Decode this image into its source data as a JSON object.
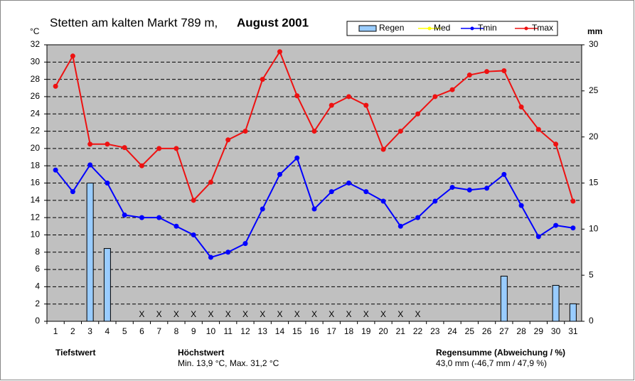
{
  "chart_data": {
    "type": "line",
    "title": "Stetten am kalten  Markt  789 m,",
    "period": "August 2001",
    "ylabel": "°C",
    "y2label": "mm",
    "categories": [
      "1",
      "2",
      "3",
      "4",
      "5",
      "6",
      "7",
      "8",
      "9",
      "10",
      "11",
      "12",
      "13",
      "14",
      "15",
      "16",
      "17",
      "18",
      "19",
      "20",
      "21",
      "22",
      "23",
      "24",
      "25",
      "26",
      "27",
      "28",
      "29",
      "30",
      "31"
    ],
    "series": [
      {
        "name": "Regen",
        "color": "#99ccff",
        "kind": "bar",
        "axis": "y2",
        "values": [
          0,
          0,
          15.0,
          7.9,
          0,
          0,
          0,
          0,
          0,
          0,
          0,
          0,
          0,
          0,
          0,
          0,
          0,
          0,
          0,
          0,
          0,
          0,
          0,
          0,
          0,
          0,
          4.9,
          0,
          0,
          3.9,
          1.9
        ]
      },
      {
        "name": "Med",
        "color": "#ffff00",
        "kind": "line",
        "values": [
          null,
          null,
          null,
          null,
          null,
          null,
          null,
          null,
          null,
          null,
          null,
          null,
          null,
          null,
          null,
          null,
          null,
          null,
          null,
          null,
          null,
          null,
          null,
          null,
          null,
          null,
          null,
          null,
          null,
          null,
          null
        ]
      },
      {
        "name": "Tmin",
        "color": "#0000ff",
        "kind": "line",
        "values": [
          17.5,
          15.0,
          18.1,
          16.0,
          12.3,
          12.0,
          12.0,
          11.0,
          10.0,
          7.4,
          8.0,
          9.0,
          13.0,
          17.0,
          18.9,
          13.0,
          15.0,
          16.0,
          15.0,
          13.9,
          11.0,
          12.0,
          13.9,
          15.5,
          15.2,
          15.4,
          17.0,
          13.4,
          9.8,
          11.1,
          10.8
        ]
      },
      {
        "name": "Tmax",
        "color": "#ee1111",
        "kind": "line",
        "values": [
          27.2,
          30.7,
          20.5,
          20.5,
          20.1,
          18.0,
          20.0,
          20.0,
          14.0,
          16.1,
          21.0,
          22.0,
          28.0,
          31.2,
          26.1,
          22.0,
          25.0,
          26.0,
          25.0,
          19.9,
          22.0,
          24.0,
          26.0,
          26.8,
          28.5,
          28.9,
          29.0,
          24.8,
          22.2,
          20.5,
          13.9
        ]
      }
    ],
    "flags": [
      null,
      null,
      null,
      null,
      null,
      "X",
      "X",
      "X",
      "X",
      "X",
      "X",
      "X",
      "X",
      "X",
      "X",
      "X",
      "X",
      "X",
      "X",
      "X",
      "X",
      "X",
      null,
      null,
      null,
      null,
      null,
      null,
      null,
      null,
      null
    ],
    "ylim": [
      0,
      32
    ],
    "yticks": [
      0,
      2,
      4,
      6,
      8,
      10,
      12,
      14,
      16,
      18,
      20,
      22,
      24,
      26,
      28,
      30,
      32
    ],
    "y2lim": [
      0,
      30
    ],
    "y2ticks": [
      0,
      5,
      10,
      15,
      20,
      25,
      30
    ],
    "grid": true,
    "footer": {
      "low_label": "Tiefstwert",
      "high_label": "Höchstwert",
      "high_text": "Min. 13,9 °C, Max. 31,2 °C",
      "rain_label": "Regensumme (Abweichung / %)",
      "rain_text": "43,0 mm (-46,7 mm / 47,9 %)"
    }
  }
}
